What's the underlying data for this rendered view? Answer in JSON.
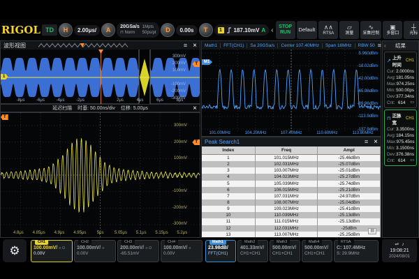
{
  "colors": {
    "yellow": "#e8d430",
    "orange": "#ff8c28",
    "green": "#17c964",
    "blue": "#4da3ff",
    "trace_blue": "#4da3ff",
    "band_blue": "#3b6fd4"
  },
  "toolbar": {
    "logo": "RIGOL",
    "status": "TD",
    "horizontal": {
      "knob": "H",
      "scale": "2.00μs/"
    },
    "acquire": {
      "knob": "A",
      "rate": "20GSa/s",
      "mode_glyph": "⊓",
      "mode": "Norm",
      "depth": "1Mpts",
      "resolution": "50ps/pt"
    },
    "delay": {
      "knob": "D",
      "value": "0.00s"
    },
    "trigger": {
      "knob": "T",
      "source": "1",
      "level": "187.10mV",
      "mode": "A"
    },
    "prev_arrow": "‹",
    "next_arrow": "›",
    "refresh_glyph": "↻",
    "buttons": [
      {
        "id": "run",
        "line1": "STOP",
        "line2": "RUN"
      },
      {
        "id": "default",
        "label": "Default",
        "glyph": ""
      },
      {
        "id": "rtsa",
        "label": "RTSA",
        "glyph": "∧∧"
      },
      {
        "id": "measure",
        "label": "测量",
        "glyph": "▱"
      },
      {
        "id": "acq-control",
        "label": "采集控制",
        "glyph": "∿"
      },
      {
        "id": "multi-window",
        "label": "多窗口",
        "glyph": "▣"
      },
      {
        "id": "cursor",
        "label": "光标",
        "glyph": "┼"
      }
    ]
  },
  "wave_view": {
    "title": "波形视图",
    "menu_icon": "≡",
    "close_icon": "×",
    "channel_badge": "1",
    "trigger_badge": "T",
    "volt_labels": [
      "300mV",
      "200mV",
      "100mV",
      "-100mV",
      "-200mV",
      "-300mV"
    ],
    "time_labels": [
      "-8μs",
      "-6μs",
      "-4μs",
      "-2μs",
      "2μs",
      "4μs",
      "6μs",
      "8μs"
    ]
  },
  "zoom_view": {
    "header_segments": [
      "延迟扫描",
      "时基: 50.00ns/div",
      "位移: 5.00μs"
    ],
    "close_icon": "×",
    "trigger_badge": "T",
    "volt_labels": [
      "300mV",
      "200mV",
      "100mV",
      "-100mV",
      "-200mV",
      "-300mV"
    ],
    "time_labels": [
      "4.8μs",
      "4.85μs",
      "4.9μs",
      "4.95μs",
      "5μs",
      "5.05μs",
      "5.1μs",
      "5.15μs",
      "5.2μs"
    ]
  },
  "fft": {
    "header_segments": [
      "Math1",
      "FFT(CH1)",
      "Sa 20GSa/s",
      "Center 107.40MHz",
      "Span 16MHz",
      "RBW 50"
    ],
    "menu_icon": "≡",
    "close_icon": "×",
    "math_badge": "M1",
    "db_labels": [
      "5.960dBm",
      "-18.02dBm",
      "-42.00dBm",
      "-65.98dBm",
      "-89.96dBm",
      "-113.9dBm",
      "-137.9dBm"
    ],
    "freq_labels": [
      "101.00MHz",
      "104.20MHz",
      "107.40MHz",
      "110.60MHz",
      "113.80MHz"
    ]
  },
  "peak_table": {
    "title": "Peak Search1",
    "menu_icon": "≡",
    "close_icon": "×",
    "list_icon": "▤",
    "headers": [
      "Index",
      "Freq",
      "Ampl"
    ],
    "rows": [
      [
        "1",
        "101.015MHz",
        "-25.46dBm"
      ],
      [
        "2",
        "102.031MHz",
        "-25.07dBm"
      ],
      [
        "3",
        "103.007MHz",
        "-25.01dBm"
      ],
      [
        "4",
        "104.023MHz",
        "-25.27dBm"
      ],
      [
        "5",
        "105.039MHz",
        "-25.74dBm"
      ],
      [
        "6",
        "106.015MHz",
        "-25.21dBm"
      ],
      [
        "7",
        "107.031MHz",
        "-24.97dBm"
      ],
      [
        "8",
        "108.007MHz",
        "-25.04dBm"
      ],
      [
        "9",
        "109.023MHz",
        "-25.41dBm"
      ],
      [
        "10",
        "110.039MHz",
        "-25.13dBm"
      ],
      [
        "11",
        "111.015MHz",
        "-25.13dBm"
      ],
      [
        "12",
        "112.031MHz",
        "-25dBm"
      ],
      [
        "13",
        "113.007MHz",
        "-25.25dBm"
      ]
    ]
  },
  "results": {
    "title": "结果",
    "collapse_icon": "‹",
    "cards": [
      {
        "name": "上升时间",
        "source": "CH1",
        "glyph": "↗",
        "selected": false,
        "print_icon": "▭",
        "stats": [
          {
            "k": "Cur:",
            "v": "2.0000ns"
          },
          {
            "k": "Avg:",
            "v": "181.05ns"
          },
          {
            "k": "Max:",
            "v": "974.25ns"
          },
          {
            "k": "Min:",
            "v": "500.00ps"
          },
          {
            "k": "Dev:",
            "v": "377.34ns"
          },
          {
            "k": "Cnt:",
            "v": "614"
          }
        ]
      },
      {
        "name": "正脉宽",
        "source": "CH1",
        "glyph": "⊓",
        "selected": true,
        "print_icon": "▭",
        "stats": [
          {
            "k": "Cur:",
            "v": "3.3500ns"
          },
          {
            "k": "Avg:",
            "v": "184.15ns"
          },
          {
            "k": "Max:",
            "v": "975.45ns"
          },
          {
            "k": "Min:",
            "v": "3.1500ns"
          },
          {
            "k": "Dev:",
            "v": "376.38ns"
          },
          {
            "k": "Cnt:",
            "v": "614"
          }
        ]
      }
    ]
  },
  "bottom": {
    "gear_icon": "⚙",
    "channels": [
      {
        "tab": "CH1",
        "line1": "100.00mV/",
        "icons": "≡ Ω",
        "line2": "0.00V",
        "active": "yellow"
      },
      {
        "tab": "CH2",
        "line1": "100.00mV/",
        "icons": "≡",
        "line2": "0.00V",
        "active": ""
      },
      {
        "tab": "CH3",
        "line1": "200.00mV/",
        "icons": "≡ Ω",
        "line2": "-65.51mV",
        "active": ""
      },
      {
        "tab": "CH4",
        "line1": "100.00mV/",
        "icons": "≡",
        "line2": "0.00V",
        "active": ""
      },
      {
        "tab": "Math1",
        "line1": "23.98dB/",
        "icons": "",
        "line2": "FFT(CH1)",
        "active": "blue"
      },
      {
        "tab": "Math2",
        "line1": "401.33mV/",
        "icons": "",
        "line2": "CH1+CH1",
        "active": ""
      },
      {
        "tab": "Math3",
        "line1": "500.00mV/",
        "icons": "",
        "line2": "CH1+CH1",
        "active": ""
      },
      {
        "tab": "Math4",
        "line1": "500.00mV/",
        "icons": "",
        "line2": "CH1+CH1",
        "active": ""
      },
      {
        "tab": "RTSA",
        "line1": "C: 107.4MHz",
        "icons": "",
        "line2": "S: 29.9MHz",
        "active": ""
      }
    ],
    "clock": {
      "icons": [
        "⇌",
        "♪"
      ],
      "time": "19:08:21",
      "date": "2024/08/01"
    }
  }
}
